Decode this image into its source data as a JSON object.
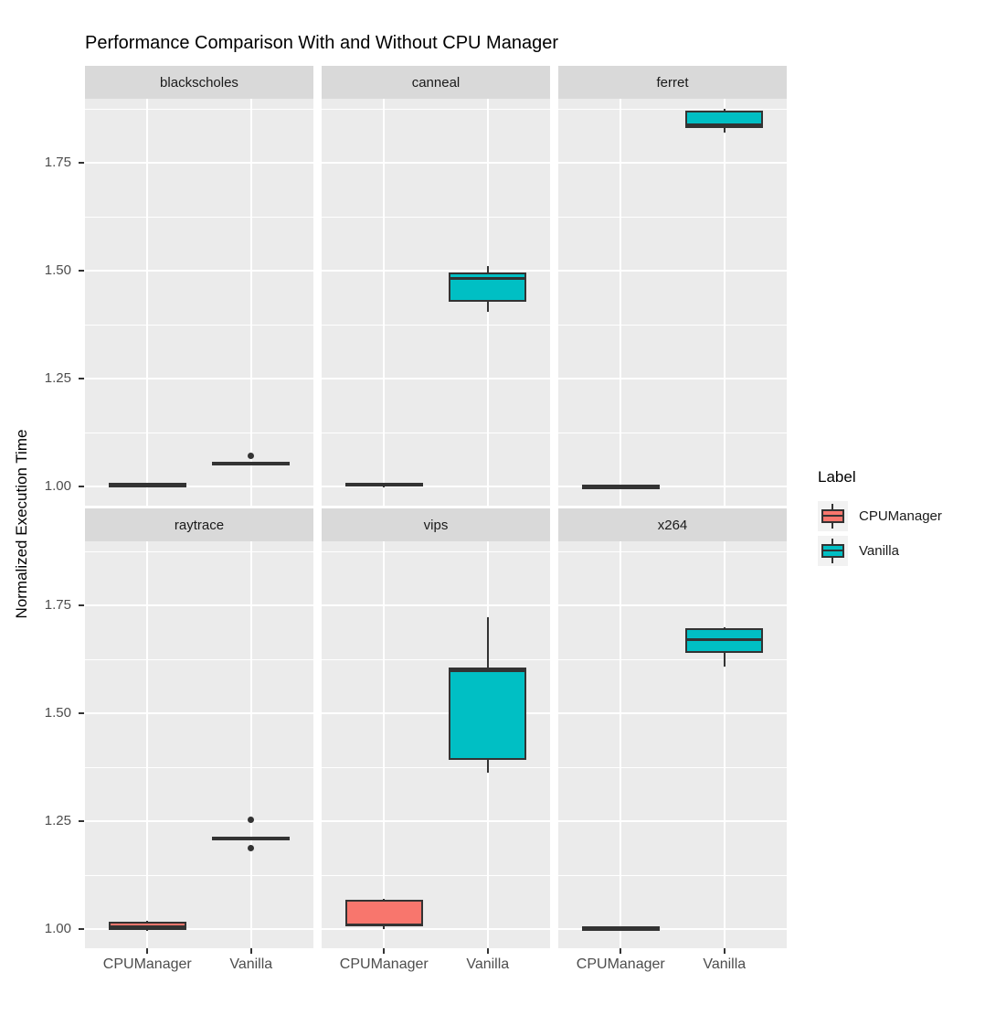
{
  "title": "Performance Comparison With and Without CPU Manager",
  "y_axis": {
    "label": "Normalized Execution Time",
    "ticks": [
      1.75,
      1.5,
      1.25,
      1.0
    ],
    "tick_labels": [
      "1.75",
      "1.50",
      "1.25",
      "1.00"
    ],
    "minor_ticks": [
      1.875,
      1.625,
      1.375,
      1.125
    ]
  },
  "x_axis": {
    "categories": [
      "CPUManager",
      "Vanilla"
    ]
  },
  "legend": {
    "title": "Label",
    "items": [
      {
        "label": "CPUManager",
        "color": "#F8766D"
      },
      {
        "label": "Vanilla",
        "color": "#00BFC4"
      }
    ]
  },
  "colors": {
    "cpumanager_fill": "#F8766D",
    "vanilla_fill": "#00BFC4",
    "box_border": "#333333",
    "panel_bg": "#EBEBEB",
    "strip_bg": "#D9D9D9",
    "gridline": "#FFFFFF",
    "axis_text": "#4D4D4D",
    "legend_key_bg": "#F2F2F2"
  },
  "chart_data": {
    "type": "boxplot",
    "faceted": true,
    "ylabel": "Normalized Execution Time",
    "ylim": [
      0.956,
      1.899
    ],
    "categories": [
      "CPUManager",
      "Vanilla"
    ],
    "facets": [
      {
        "name": "blackscholes",
        "groups": [
          {
            "label": "CPUManager",
            "stats": {
              "min": 1.002,
              "q1": 1.003,
              "median": 1.005,
              "q3": 1.007,
              "max": 1.008
            },
            "outliers": []
          },
          {
            "label": "Vanilla",
            "stats": {
              "min": 1.051,
              "q1": 1.053,
              "median": 1.055,
              "q3": 1.057,
              "max": 1.058
            },
            "outliers": [
              1.071
            ]
          }
        ]
      },
      {
        "name": "canneal",
        "groups": [
          {
            "label": "CPUManager",
            "stats": {
              "min": 0.999,
              "q1": 1.0,
              "median": 1.004,
              "q3": 1.008,
              "max": 1.01
            },
            "outliers": []
          },
          {
            "label": "Vanilla",
            "stats": {
              "min": 1.405,
              "q1": 1.428,
              "median": 1.483,
              "q3": 1.497,
              "max": 1.512
            },
            "outliers": []
          }
        ]
      },
      {
        "name": "ferret",
        "groups": [
          {
            "label": "CPUManager",
            "stats": {
              "min": 0.999,
              "q1": 1.0,
              "median": 1.001,
              "q3": 1.003,
              "max": 1.004
            },
            "outliers": []
          },
          {
            "label": "Vanilla",
            "stats": {
              "min": 1.82,
              "q1": 1.831,
              "median": 1.838,
              "q3": 1.872,
              "max": 1.875
            },
            "outliers": []
          }
        ]
      },
      {
        "name": "raytrace",
        "groups": [
          {
            "label": "CPUManager",
            "stats": {
              "min": 0.996,
              "q1": 0.998,
              "median": 1.005,
              "q3": 1.017,
              "max": 1.019
            },
            "outliers": []
          },
          {
            "label": "Vanilla",
            "stats": {
              "min": 1.209,
              "q1": 1.21,
              "median": 1.212,
              "q3": 1.214,
              "max": 1.215
            },
            "outliers": [
              1.253,
              1.189
            ]
          }
        ]
      },
      {
        "name": "vips",
        "groups": [
          {
            "label": "CPUManager",
            "stats": {
              "min": 1.0,
              "q1": 1.008,
              "median": 1.011,
              "q3": 1.068,
              "max": 1.071
            },
            "outliers": []
          },
          {
            "label": "Vanilla",
            "stats": {
              "min": 1.362,
              "q1": 1.392,
              "median": 1.6,
              "q3": 1.607,
              "max": 1.724
            },
            "outliers": []
          }
        ]
      },
      {
        "name": "x264",
        "groups": [
          {
            "label": "CPUManager",
            "stats": {
              "min": 1.0,
              "q1": 1.001,
              "median": 1.003,
              "q3": 1.005,
              "max": 1.006
            },
            "outliers": []
          },
          {
            "label": "Vanilla",
            "stats": {
              "min": 1.608,
              "q1": 1.64,
              "median": 1.672,
              "q3": 1.697,
              "max": 1.7
            },
            "outliers": []
          }
        ]
      }
    ]
  }
}
